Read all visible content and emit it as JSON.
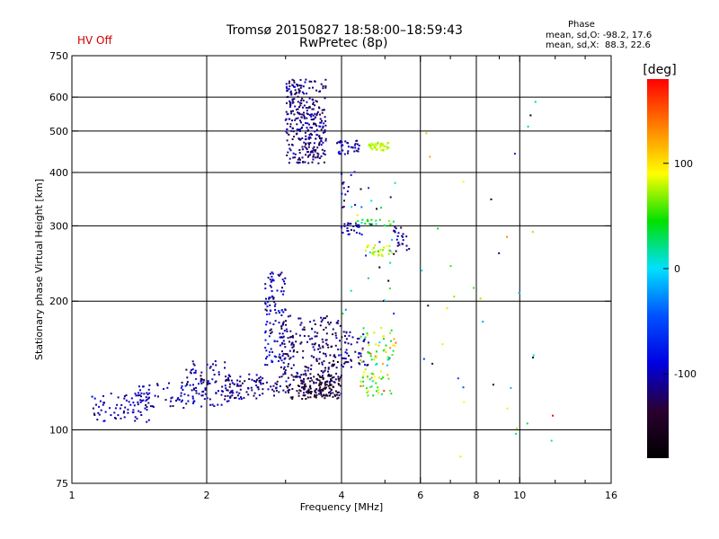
{
  "header": {
    "status": "HV Off",
    "title_line1": "Tromsø 20150827 18:58:00–18:59:43",
    "title_line2": "RwPretec (8p)",
    "phase_heading": "Phase",
    "phase_line1": "mean, sd,O: -98.2, 17.6",
    "phase_line2": "mean, sd,X:  88.3, 22.6"
  },
  "colors": {
    "status": "#d00000",
    "grid": "#000000",
    "axes": "#000000"
  },
  "colorbar": {
    "label": "[deg]",
    "ticks": [
      {
        "value": 100,
        "label": "100"
      },
      {
        "value": 0,
        "label": "0"
      },
      {
        "value": -100,
        "label": "-100"
      }
    ],
    "range": [
      -180,
      180
    ],
    "stops": [
      "#000000",
      "#2a0030",
      "#0000e0",
      "#0050ff",
      "#00e0ff",
      "#00e000",
      "#ffff00",
      "#ff8000",
      "#ff0000"
    ]
  },
  "chart_data": {
    "type": "scatter",
    "title": "Tromsø 20150827 18:58:00–18:59:43",
    "subtitle": "RwPretec (8p)",
    "xlabel": "Frequency [MHz]",
    "ylabel": "Stationary phase Virtual Height [km]",
    "xscale": "log",
    "yscale": "log",
    "xlim": [
      1,
      16
    ],
    "ylim": [
      75,
      750
    ],
    "xticks": [
      {
        "v": 1,
        "label": "1"
      },
      {
        "v": 2,
        "label": "2"
      },
      {
        "v": 4,
        "label": "4"
      },
      {
        "v": 6,
        "label": "6"
      },
      {
        "v": 8,
        "label": "8"
      },
      {
        "v": 10,
        "label": "10"
      },
      {
        "v": 16,
        "label": "16"
      }
    ],
    "xgrid": [
      2,
      4,
      6,
      8,
      10
    ],
    "xminor": [
      3,
      5,
      7,
      9,
      12,
      14
    ],
    "yticks": [
      {
        "v": 75,
        "label": "75"
      },
      {
        "v": 100,
        "label": "100"
      },
      {
        "v": 200,
        "label": "200"
      },
      {
        "v": 300,
        "label": "300"
      },
      {
        "v": 400,
        "label": "400"
      },
      {
        "v": 500,
        "label": "500"
      },
      {
        "v": 600,
        "label": "600"
      },
      {
        "v": 750,
        "label": "750"
      }
    ],
    "ygrid": [
      100,
      200,
      300,
      400,
      500,
      600
    ],
    "grid": true,
    "colorscale": "phase [deg]",
    "clusters": [
      {
        "x": [
          3.0,
          3.7
        ],
        "y": [
          420,
          660
        ],
        "count": 320,
        "phase_mean": -115,
        "phase_sd": 12
      },
      {
        "x": [
          1.1,
          1.5
        ],
        "y": [
          104,
          122
        ],
        "count": 70,
        "phase_mean": -105,
        "phase_sd": 10
      },
      {
        "x": [
          1.4,
          1.9
        ],
        "y": [
          112,
          130
        ],
        "count": 60,
        "phase_mean": -100,
        "phase_sd": 15
      },
      {
        "x": [
          1.8,
          2.3
        ],
        "y": [
          113,
          145
        ],
        "count": 90,
        "phase_mean": -105,
        "phase_sd": 15
      },
      {
        "x": [
          2.2,
          2.9
        ],
        "y": [
          118,
          135
        ],
        "count": 90,
        "phase_mean": -115,
        "phase_sd": 15
      },
      {
        "x": [
          2.7,
          3.0
        ],
        "y": [
          140,
          235
        ],
        "count": 110,
        "phase_mean": -100,
        "phase_sd": 18
      },
      {
        "x": [
          2.9,
          4.0
        ],
        "y": [
          120,
          185
        ],
        "count": 260,
        "phase_mean": -118,
        "phase_sd": 15
      },
      {
        "x": [
          3.0,
          4.0
        ],
        "y": [
          118,
          135
        ],
        "count": 120,
        "phase_mean": -140,
        "phase_sd": 12
      },
      {
        "x": [
          4.0,
          4.6
        ],
        "y": [
          140,
          170
        ],
        "count": 50,
        "phase_mean": -110,
        "phase_sd": 15
      },
      {
        "x": [
          4.4,
          5.3
        ],
        "y": [
          120,
          175
        ],
        "count": 90,
        "phase_mean": 70,
        "phase_sd": 40
      },
      {
        "x": [
          4.0,
          4.4
        ],
        "y": [
          285,
          305
        ],
        "count": 25,
        "phase_mean": -105,
        "phase_sd": 12
      },
      {
        "x": [
          4.5,
          5.2
        ],
        "y": [
          255,
          270
        ],
        "count": 30,
        "phase_mean": 75,
        "phase_sd": 10
      },
      {
        "x": [
          4.3,
          5.3
        ],
        "y": [
          300,
          310
        ],
        "count": 20,
        "phase_mean": 40,
        "phase_sd": 20
      },
      {
        "x": [
          5.2,
          5.7
        ],
        "y": [
          260,
          300
        ],
        "count": 25,
        "phase_mean": -110,
        "phase_sd": 10
      },
      {
        "x": [
          4.6,
          5.1
        ],
        "y": [
          450,
          470
        ],
        "count": 40,
        "phase_mean": 75,
        "phase_sd": 6
      },
      {
        "x": [
          3.9,
          4.4
        ],
        "y": [
          440,
          475
        ],
        "count": 35,
        "phase_mean": -105,
        "phase_sd": 12
      },
      {
        "x": [
          4.0,
          4.3
        ],
        "y": [
          330,
          410
        ],
        "count": 15,
        "phase_mean": -110,
        "phase_sd": 12
      },
      {
        "x": [
          4.0,
          5.3
        ],
        "y": [
          180,
          380
        ],
        "count": 30,
        "phase_mean": -60,
        "phase_sd": 90
      },
      {
        "x": [
          6.0,
          12.0
        ],
        "y": [
          85,
          600
        ],
        "count": 38,
        "phase_mean": 0,
        "phase_sd": 110
      }
    ]
  }
}
